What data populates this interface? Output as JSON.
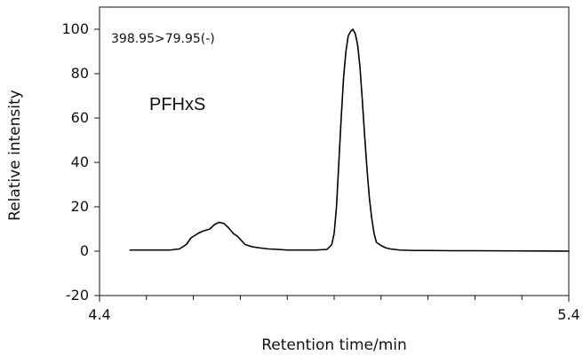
{
  "chart_data": {
    "type": "line",
    "xlabel": "Retention time/min",
    "ylabel": "Relative intensity",
    "xlim": [
      4.4,
      5.4
    ],
    "ylim": [
      -20,
      110
    ],
    "x_tick_labels": [
      "4.4",
      "5.4"
    ],
    "x_minor_ticks": [
      4.5,
      4.6,
      4.7,
      4.8,
      4.9,
      5.0,
      5.1,
      5.2,
      5.3
    ],
    "y_ticks": [
      -20,
      0,
      20,
      40,
      60,
      80,
      100
    ],
    "y_tick_labels": [
      "-20",
      "0",
      "20",
      "40",
      "60",
      "80",
      "100"
    ],
    "grid": false,
    "annotations": [
      "398.95>79.95(-)",
      "PFHxS"
    ],
    "series": [
      {
        "color": "#000000",
        "x": [
          4.465,
          4.5,
          4.55,
          4.57,
          4.585,
          4.595,
          4.61,
          4.62,
          4.635,
          4.645,
          4.655,
          4.665,
          4.675,
          4.685,
          4.695,
          4.71,
          4.725,
          4.74,
          4.76,
          4.78,
          4.8,
          4.83,
          4.86,
          4.885,
          4.895,
          4.9,
          4.905,
          4.91,
          4.915,
          4.92,
          4.925,
          4.93,
          4.935,
          4.94,
          4.945,
          4.95,
          4.955,
          4.96,
          4.965,
          4.97,
          4.975,
          4.98,
          4.985,
          4.99,
          5.0,
          5.01,
          5.02,
          5.04,
          5.07,
          5.1,
          5.15,
          5.2,
          5.3,
          5.4
        ],
        "y": [
          0.5,
          0.5,
          0.5,
          1,
          3,
          6,
          8,
          9,
          10,
          12,
          13,
          12.5,
          10.5,
          8,
          6.5,
          3,
          2,
          1.5,
          1,
          0.8,
          0.5,
          0.5,
          0.5,
          0.8,
          3,
          8,
          20,
          40,
          60,
          78,
          90,
          97,
          99,
          100,
          98,
          93,
          83,
          68,
          52,
          37,
          24,
          15,
          8,
          4,
          2.5,
          1.5,
          1,
          0.5,
          0.3,
          0.3,
          0.2,
          0.2,
          0.1,
          0
        ]
      }
    ]
  }
}
